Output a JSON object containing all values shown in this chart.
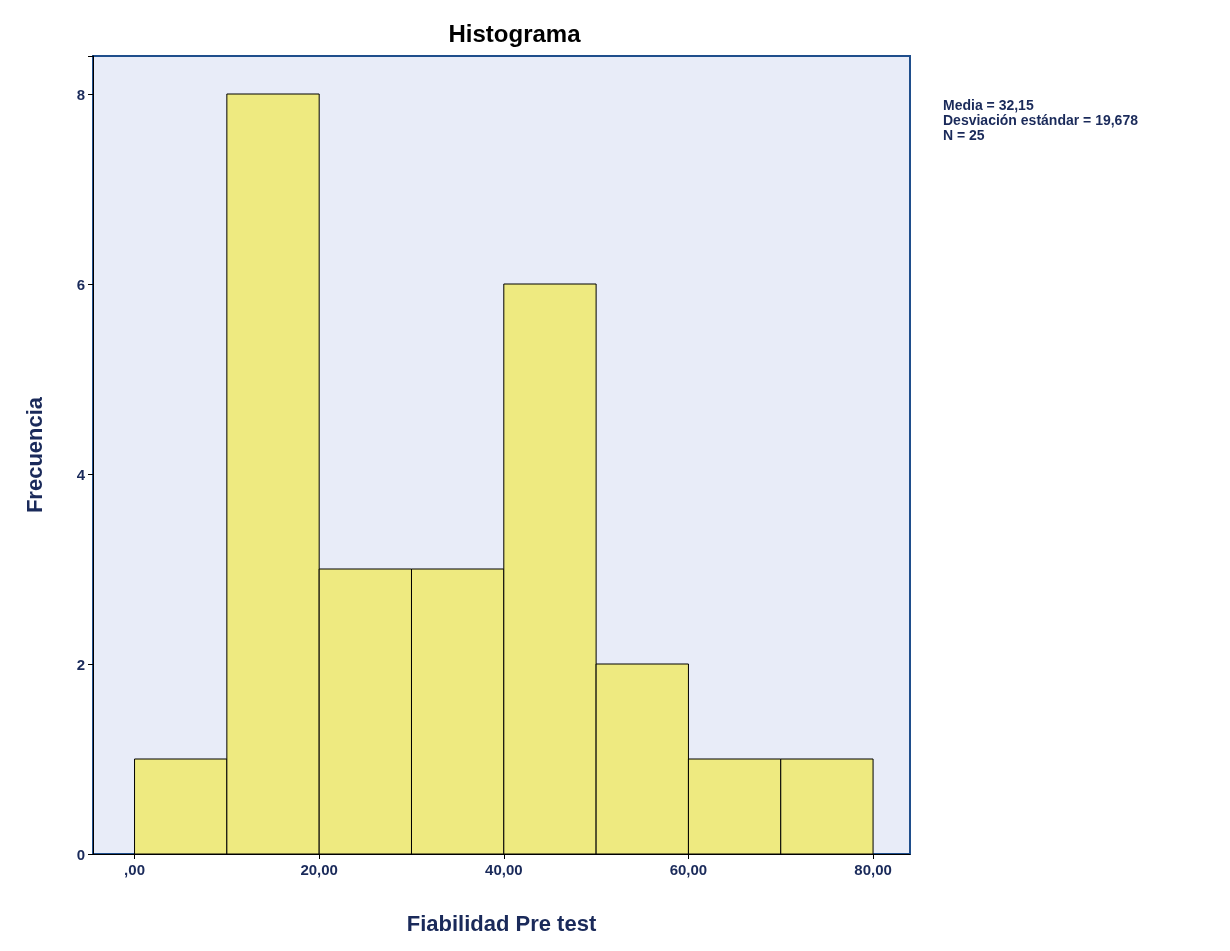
{
  "chart_data": {
    "type": "histogram",
    "title": "Histograma",
    "xlabel": "Fiabilidad Pre test",
    "ylabel": "Frecuencia",
    "bins": [
      0,
      10,
      20,
      30,
      40,
      50,
      60,
      70,
      80
    ],
    "values": [
      1,
      8,
      3,
      3,
      6,
      2,
      1,
      1
    ],
    "color": "#eeea80",
    "xlim": [
      -4.5,
      84
    ],
    "xticks": [
      {
        "value": 0,
        "label": ",00"
      },
      {
        "value": 20,
        "label": "20,00"
      },
      {
        "value": 40,
        "label": "40,00"
      },
      {
        "value": 60,
        "label": "60,00"
      },
      {
        "value": 80,
        "label": "80,00"
      }
    ],
    "ylim": [
      0,
      8.4
    ],
    "yticks": [
      0,
      2,
      4,
      6,
      8
    ],
    "annotations": [
      "Media = 32,15",
      "Desviación estándar = 19,678",
      "N = 25"
    ]
  }
}
